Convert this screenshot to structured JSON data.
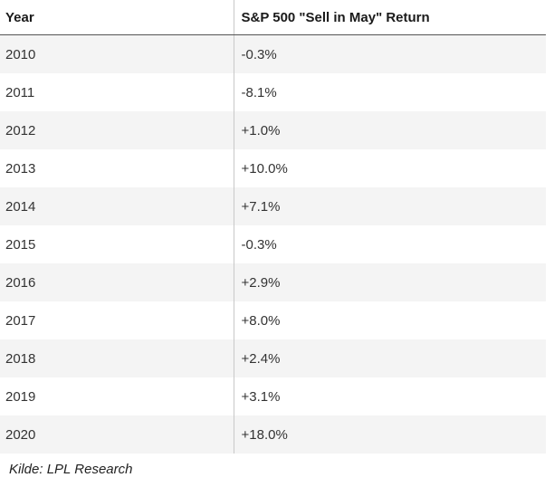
{
  "table": {
    "headers": [
      "Year",
      "S&P 500 \"Sell in May\" Return"
    ],
    "rows": [
      [
        "2010",
        "-0.3%"
      ],
      [
        "2011",
        "-8.1%"
      ],
      [
        "2012",
        "+1.0%"
      ],
      [
        "2013",
        "+10.0%"
      ],
      [
        "2014",
        "+7.1%"
      ],
      [
        "2015",
        "-0.3%"
      ],
      [
        "2016",
        "+2.9%"
      ],
      [
        "2017",
        "+8.0%"
      ],
      [
        "2018",
        "+2.4%"
      ],
      [
        "2019",
        "+3.1%"
      ],
      [
        "2020",
        "+18.0%"
      ]
    ]
  },
  "source": "Kilde: LPL Research"
}
